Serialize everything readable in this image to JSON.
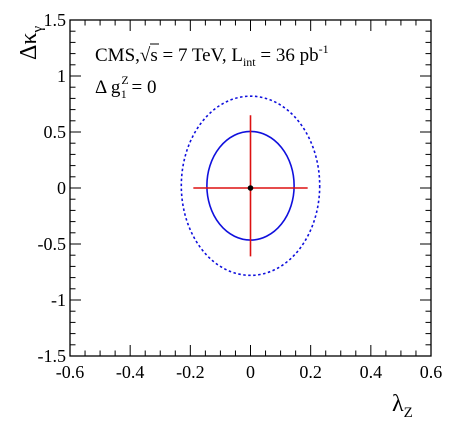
{
  "chart_data": {
    "type": "scatter",
    "title": "",
    "xlabel": "λ",
    "xlabel_sub": "Z",
    "ylabel": "Δκ",
    "ylabel_sub": "γ",
    "xlim": [
      -0.6,
      0.6
    ],
    "ylim": [
      -1.5,
      1.5
    ],
    "x_ticks": [
      "-0.6",
      "-0.4",
      "-0.2",
      "0",
      "0.2",
      "0.4",
      "0.6"
    ],
    "y_ticks": [
      "-1.5",
      "-1",
      "-0.5",
      "0",
      "0.5",
      "1",
      "1.5"
    ],
    "grid": false,
    "annotations": {
      "line1_prefix": "CMS,",
      "sqrt": "√",
      "line1_s": "s = 7 TeV, L",
      "line1_sub": "int",
      "line1_eq": " = 36 pb",
      "line1_sup": "-1",
      "line2_prefix": "Δ g",
      "line2_sup": "Z",
      "line2_sub": "1",
      "line2_eq": " = 0"
    },
    "best_fit": {
      "x": 0.0,
      "y": 0.0
    },
    "error_bars": {
      "x_low": -0.19,
      "x_high": 0.19,
      "y_low": -0.61,
      "y_high": 0.65
    },
    "contours": [
      {
        "style": "solid",
        "color": "#1010dd",
        "cx": 0.0,
        "cy": 0.02,
        "rx": 0.145,
        "ry": 0.485
      },
      {
        "style": "dotted",
        "color": "#1010dd",
        "cx": 0.0,
        "cy": 0.02,
        "rx": 0.23,
        "ry": 0.8
      }
    ],
    "colors": {
      "contour": "#1010dd",
      "error_bar": "#dd1111",
      "point": "#000000",
      "frame": "#000000"
    }
  }
}
